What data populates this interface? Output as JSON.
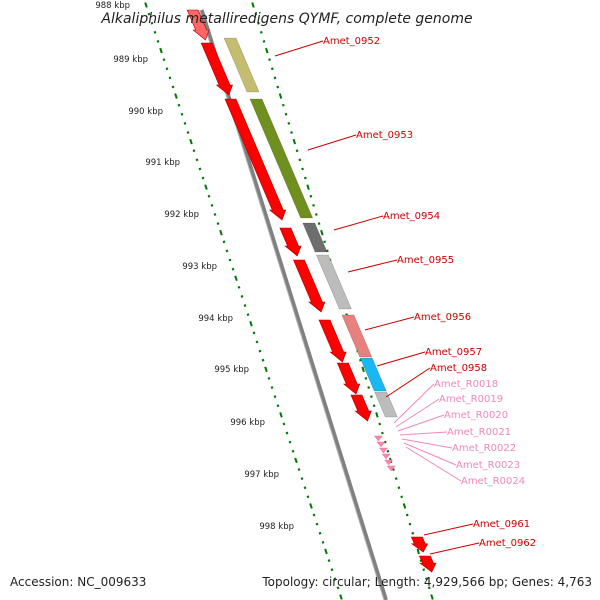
{
  "title": "Alkaliphilus metalliredigens QYMF, complete genome",
  "footer": {
    "accession": "Accession: NC_009633",
    "summary": "Topology: circular; Length: 4,929,566 bp; Genes: 4,763"
  },
  "scale_labels": [
    "988 kbp",
    "989 kbp",
    "990 kbp",
    "991 kbp",
    "992 kbp",
    "993 kbp",
    "994 kbp",
    "995 kbp",
    "996 kbp",
    "997 kbp",
    "998 kbp"
  ],
  "colors": {
    "gene": "#ff0000",
    "rna": "#ff88aa",
    "gene_label": "#cc0000",
    "rna_label": "#ee88bb",
    "backbone": "#808080",
    "ticks": "#007700"
  },
  "gene_labels": [
    {
      "name": "Amet_0952",
      "type": "gene"
    },
    {
      "name": "Amet_0953",
      "type": "gene"
    },
    {
      "name": "Amet_0954",
      "type": "gene"
    },
    {
      "name": "Amet_0955",
      "type": "gene"
    },
    {
      "name": "Amet_0956",
      "type": "gene"
    },
    {
      "name": "Amet_0957",
      "type": "gene"
    },
    {
      "name": "Amet_0958",
      "type": "gene"
    },
    {
      "name": "Amet_R0018",
      "type": "rna"
    },
    {
      "name": "Amet_R0019",
      "type": "rna"
    },
    {
      "name": "Amet_R0020",
      "type": "rna"
    },
    {
      "name": "Amet_R0021",
      "type": "rna"
    },
    {
      "name": "Amet_R0022",
      "type": "rna"
    },
    {
      "name": "Amet_R0023",
      "type": "rna"
    },
    {
      "name": "Amet_R0024",
      "type": "rna"
    },
    {
      "name": "Amet_0961",
      "type": "gene"
    },
    {
      "name": "Amet_0962",
      "type": "gene"
    }
  ]
}
